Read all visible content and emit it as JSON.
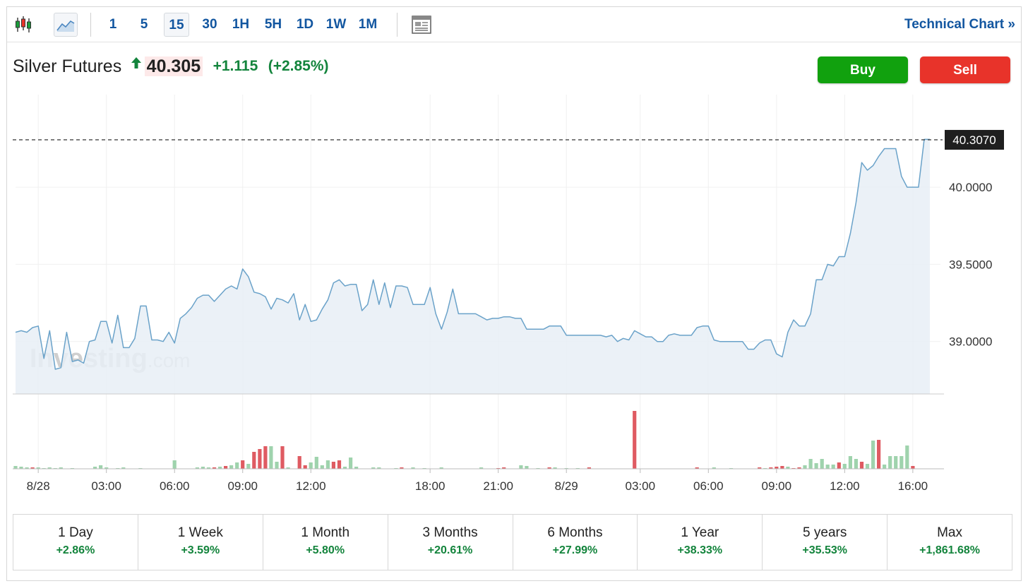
{
  "toolbar": {
    "intervals": [
      "1",
      "5",
      "15",
      "30",
      "1H",
      "5H",
      "1D",
      "1W",
      "1M"
    ],
    "active_interval": "15",
    "technical_chart_label": "Technical Chart",
    "technical_chart_arrow": "»"
  },
  "header": {
    "instrument": "Silver Futures",
    "price": "40.305",
    "change": "+1.115",
    "change_pct": "(+2.85%)",
    "buy_label": "Buy",
    "sell_label": "Sell"
  },
  "watermark": {
    "brand": "Investing",
    "suffix": ".com"
  },
  "colors": {
    "line": "#6aa2c9",
    "area": "#e7eef6",
    "vol_up": "#9fd3ad",
    "vol_down": "#df5b62",
    "buy": "#11a10e",
    "sell": "#e8332a",
    "positive": "#13843c",
    "link": "#1256a0"
  },
  "chart_data": {
    "type": "line",
    "title": "",
    "xlabel": "",
    "ylabel": "",
    "ylim": [
      38.66,
      40.6
    ],
    "y_ticks": [
      "39.0000",
      "39.5000",
      "40.0000"
    ],
    "x_ticks": [
      {
        "label": "8/28",
        "i": 4
      },
      {
        "label": "03:00",
        "i": 16
      },
      {
        "label": "06:00",
        "i": 28
      },
      {
        "label": "09:00",
        "i": 40
      },
      {
        "label": "12:00",
        "i": 52
      },
      {
        "label": "18:00",
        "i": 73
      },
      {
        "label": "21:00",
        "i": 85
      },
      {
        "label": "8/29",
        "i": 97
      },
      {
        "label": "03:00",
        "i": 110
      },
      {
        "label": "06:00",
        "i": 122
      },
      {
        "label": "09:00",
        "i": 134
      },
      {
        "label": "12:00",
        "i": 146
      },
      {
        "label": "16:00",
        "i": 158
      }
    ],
    "last_price_label": "40.3070",
    "last_price": 40.307,
    "grid": true,
    "series": [
      {
        "values": [
          39.06,
          39.07,
          39.06,
          39.09,
          39.1,
          38.89,
          39.07,
          38.82,
          38.83,
          39.06,
          38.87,
          38.88,
          38.86,
          39.0,
          39.01,
          39.13,
          39.13,
          38.99,
          39.17,
          38.96,
          38.96,
          39.02,
          39.23,
          39.23,
          39.01,
          39.01,
          39.0,
          39.06,
          38.99,
          39.15,
          39.18,
          39.22,
          39.28,
          39.3,
          39.3,
          39.26,
          39.3,
          39.34,
          39.36,
          39.34,
          39.47,
          39.42,
          39.32,
          39.31,
          39.29,
          39.21,
          39.28,
          39.27,
          39.25,
          39.31,
          39.14,
          39.24,
          39.13,
          39.14,
          39.21,
          39.27,
          39.38,
          39.4,
          39.36,
          39.37,
          39.37,
          39.2,
          39.24,
          39.4,
          39.24,
          39.38,
          39.22,
          39.36,
          39.36,
          39.35,
          39.24,
          39.24,
          39.24,
          39.35,
          39.18,
          39.08,
          39.19,
          39.34,
          39.18,
          39.18,
          39.18,
          39.18,
          39.16,
          39.14,
          39.15,
          39.15,
          39.16,
          39.16,
          39.15,
          39.15,
          39.08,
          39.08,
          39.08,
          39.08,
          39.1,
          39.1,
          39.1,
          39.04,
          39.04,
          39.04,
          39.04,
          39.04,
          39.04,
          39.04,
          39.03,
          39.04,
          39.0,
          39.02,
          39.01,
          39.07,
          39.05,
          39.03,
          39.03,
          39.0,
          39.0,
          39.04,
          39.05,
          39.04,
          39.04,
          39.04,
          39.09,
          39.1,
          39.1,
          39.01,
          39.0,
          39.0,
          39.0,
          39.0,
          39.0,
          38.95,
          38.95,
          38.99,
          39.01,
          39.01,
          38.92,
          38.9,
          39.06,
          39.14,
          39.1,
          39.1,
          39.18,
          39.4,
          39.4,
          39.5,
          39.49,
          39.55,
          39.55,
          39.7,
          39.9,
          40.16,
          40.11,
          40.14,
          40.2,
          40.25,
          40.25,
          40.25,
          40.07,
          40.0,
          40.0,
          40.0,
          40.31,
          40.31
        ]
      }
    ],
    "volume": {
      "max": 100,
      "bars": [
        {
          "i": 0,
          "v": 4,
          "d": "up"
        },
        {
          "i": 1,
          "v": 3,
          "d": "up"
        },
        {
          "i": 2,
          "v": 2,
          "d": "up"
        },
        {
          "i": 3,
          "v": 2,
          "d": "down"
        },
        {
          "i": 4,
          "v": 2,
          "d": "up"
        },
        {
          "i": 5,
          "v": 1,
          "d": "up"
        },
        {
          "i": 6,
          "v": 2,
          "d": "up"
        },
        {
          "i": 7,
          "v": 1,
          "d": "up"
        },
        {
          "i": 8,
          "v": 2,
          "d": "up"
        },
        {
          "i": 10,
          "v": 1,
          "d": "up"
        },
        {
          "i": 14,
          "v": 3,
          "d": "up"
        },
        {
          "i": 15,
          "v": 5,
          "d": "up"
        },
        {
          "i": 16,
          "v": 2,
          "d": "up"
        },
        {
          "i": 18,
          "v": 1,
          "d": "up"
        },
        {
          "i": 19,
          "v": 2,
          "d": "up"
        },
        {
          "i": 22,
          "v": 1,
          "d": "up"
        },
        {
          "i": 28,
          "v": 12,
          "d": "up"
        },
        {
          "i": 32,
          "v": 2,
          "d": "up"
        },
        {
          "i": 33,
          "v": 3,
          "d": "up"
        },
        {
          "i": 34,
          "v": 2,
          "d": "up"
        },
        {
          "i": 35,
          "v": 2,
          "d": "down"
        },
        {
          "i": 36,
          "v": 3,
          "d": "up"
        },
        {
          "i": 37,
          "v": 4,
          "d": "down"
        },
        {
          "i": 38,
          "v": 5,
          "d": "up"
        },
        {
          "i": 39,
          "v": 9,
          "d": "up"
        },
        {
          "i": 40,
          "v": 12,
          "d": "down"
        },
        {
          "i": 41,
          "v": 7,
          "d": "up"
        },
        {
          "i": 42,
          "v": 24,
          "d": "down"
        },
        {
          "i": 43,
          "v": 28,
          "d": "down"
        },
        {
          "i": 44,
          "v": 32,
          "d": "down"
        },
        {
          "i": 45,
          "v": 32,
          "d": "up"
        },
        {
          "i": 46,
          "v": 10,
          "d": "up"
        },
        {
          "i": 47,
          "v": 32,
          "d": "down"
        },
        {
          "i": 48,
          "v": 2,
          "d": "up"
        },
        {
          "i": 50,
          "v": 18,
          "d": "down"
        },
        {
          "i": 51,
          "v": 5,
          "d": "down"
        },
        {
          "i": 52,
          "v": 9,
          "d": "up"
        },
        {
          "i": 53,
          "v": 17,
          "d": "up"
        },
        {
          "i": 54,
          "v": 5,
          "d": "up"
        },
        {
          "i": 55,
          "v": 12,
          "d": "up"
        },
        {
          "i": 56,
          "v": 10,
          "d": "down"
        },
        {
          "i": 57,
          "v": 12,
          "d": "down"
        },
        {
          "i": 58,
          "v": 3,
          "d": "up"
        },
        {
          "i": 59,
          "v": 16,
          "d": "up"
        },
        {
          "i": 60,
          "v": 3,
          "d": "up"
        },
        {
          "i": 63,
          "v": 2,
          "d": "up"
        },
        {
          "i": 64,
          "v": 2,
          "d": "up"
        },
        {
          "i": 67,
          "v": 1,
          "d": "up"
        },
        {
          "i": 68,
          "v": 2,
          "d": "down"
        },
        {
          "i": 70,
          "v": 2,
          "d": "up"
        },
        {
          "i": 72,
          "v": 1,
          "d": "up"
        },
        {
          "i": 75,
          "v": 2,
          "d": "up"
        },
        {
          "i": 82,
          "v": 2,
          "d": "up"
        },
        {
          "i": 85,
          "v": 1,
          "d": "down"
        },
        {
          "i": 86,
          "v": 2,
          "d": "down"
        },
        {
          "i": 89,
          "v": 5,
          "d": "up"
        },
        {
          "i": 90,
          "v": 4,
          "d": "up"
        },
        {
          "i": 92,
          "v": 1,
          "d": "up"
        },
        {
          "i": 94,
          "v": 2,
          "d": "down"
        },
        {
          "i": 95,
          "v": 2,
          "d": "up"
        },
        {
          "i": 97,
          "v": 1,
          "d": "up"
        },
        {
          "i": 99,
          "v": 1,
          "d": "up"
        },
        {
          "i": 101,
          "v": 2,
          "d": "down"
        },
        {
          "i": 109,
          "v": 82,
          "d": "down"
        },
        {
          "i": 120,
          "v": 2,
          "d": "down"
        },
        {
          "i": 123,
          "v": 2,
          "d": "up"
        },
        {
          "i": 126,
          "v": 1,
          "d": "up"
        },
        {
          "i": 131,
          "v": 2,
          "d": "down"
        },
        {
          "i": 132,
          "v": 1,
          "d": "up"
        },
        {
          "i": 133,
          "v": 2,
          "d": "down"
        },
        {
          "i": 134,
          "v": 3,
          "d": "down"
        },
        {
          "i": 135,
          "v": 4,
          "d": "down"
        },
        {
          "i": 136,
          "v": 3,
          "d": "up"
        },
        {
          "i": 137,
          "v": 1,
          "d": "down"
        },
        {
          "i": 138,
          "v": 2,
          "d": "down"
        },
        {
          "i": 139,
          "v": 5,
          "d": "up"
        },
        {
          "i": 140,
          "v": 14,
          "d": "up"
        },
        {
          "i": 141,
          "v": 8,
          "d": "up"
        },
        {
          "i": 142,
          "v": 14,
          "d": "up"
        },
        {
          "i": 143,
          "v": 6,
          "d": "up"
        },
        {
          "i": 144,
          "v": 6,
          "d": "up"
        },
        {
          "i": 145,
          "v": 9,
          "d": "down"
        },
        {
          "i": 146,
          "v": 7,
          "d": "up"
        },
        {
          "i": 147,
          "v": 18,
          "d": "up"
        },
        {
          "i": 148,
          "v": 14,
          "d": "up"
        },
        {
          "i": 149,
          "v": 10,
          "d": "down"
        },
        {
          "i": 150,
          "v": 7,
          "d": "up"
        },
        {
          "i": 151,
          "v": 40,
          "d": "up"
        },
        {
          "i": 152,
          "v": 41,
          "d": "down"
        },
        {
          "i": 153,
          "v": 6,
          "d": "up"
        },
        {
          "i": 154,
          "v": 18,
          "d": "up"
        },
        {
          "i": 155,
          "v": 18,
          "d": "up"
        },
        {
          "i": 156,
          "v": 18,
          "d": "up"
        },
        {
          "i": 157,
          "v": 33,
          "d": "up"
        },
        {
          "i": 158,
          "v": 4,
          "d": "down"
        }
      ]
    }
  },
  "periods": [
    {
      "label": "1 Day",
      "change": "+2.86%"
    },
    {
      "label": "1 Week",
      "change": "+3.59%"
    },
    {
      "label": "1 Month",
      "change": "+5.80%"
    },
    {
      "label": "3 Months",
      "change": "+20.61%"
    },
    {
      "label": "6 Months",
      "change": "+27.99%"
    },
    {
      "label": "1 Year",
      "change": "+38.33%"
    },
    {
      "label": "5 years",
      "change": "+35.53%"
    },
    {
      "label": "Max",
      "change": "+1,861.68%"
    }
  ]
}
